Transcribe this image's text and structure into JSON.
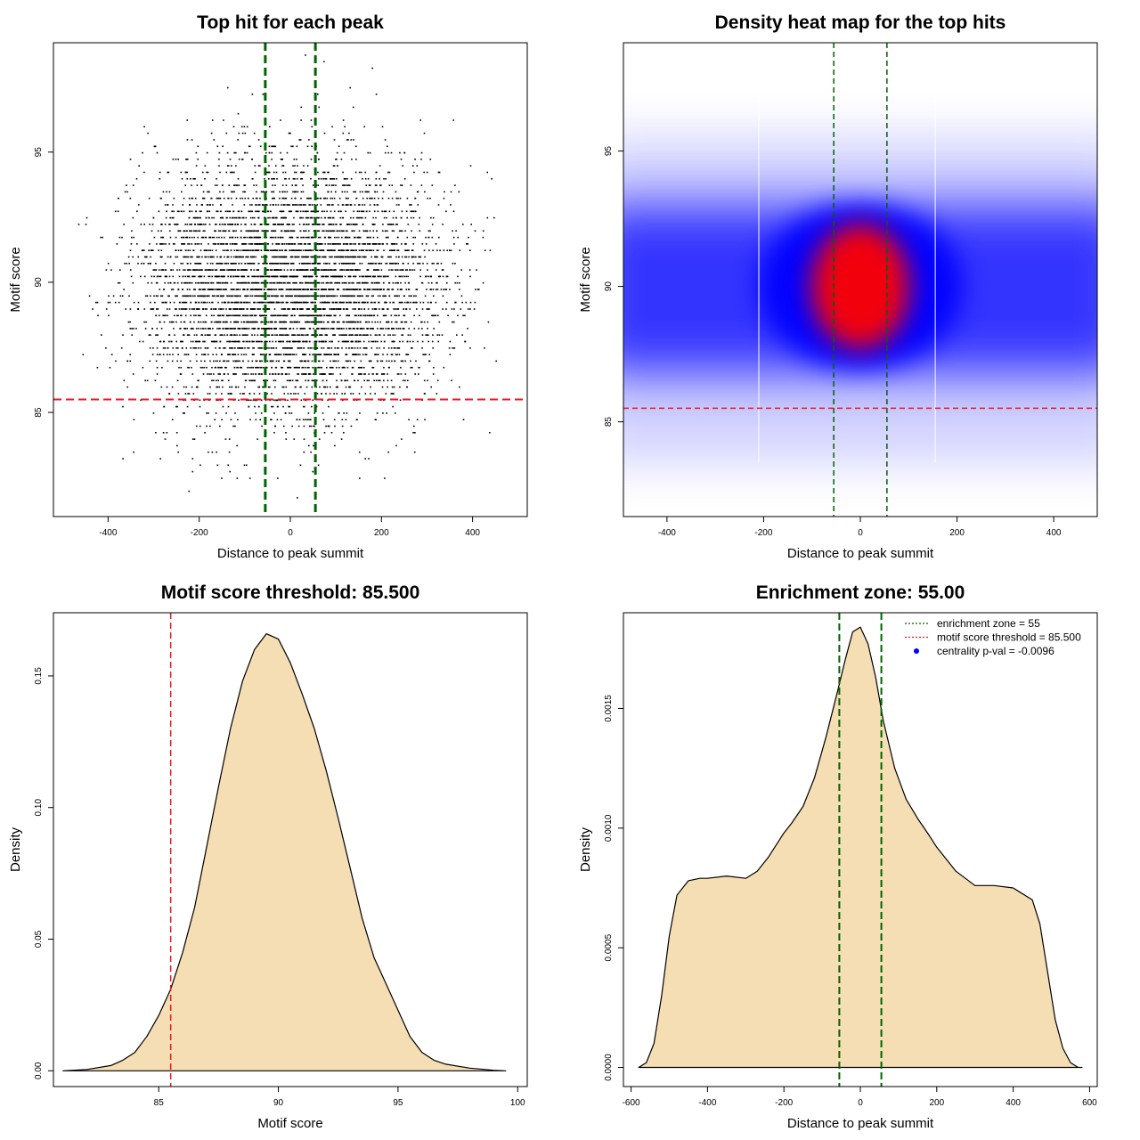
{
  "colors": {
    "fill": "#f5deb3",
    "zone_line": "#006400",
    "threshold_line": "#e41a1c",
    "heat_low": "#0000ff",
    "heat_high": "#ff0000",
    "point": "#000000"
  },
  "chart_data": [
    {
      "id": "scatter",
      "type": "scatter",
      "title": "Top hit for each peak",
      "xlabel": "Distance to peak summit",
      "ylabel": "Motif score",
      "xlim": [
        -520,
        520
      ],
      "ylim": [
        81,
        99.2
      ],
      "xticks": [
        -400,
        -200,
        0,
        200,
        400
      ],
      "yticks": [
        85,
        90,
        95
      ],
      "x_range": [
        -490,
        490
      ],
      "y_mean": 89.8,
      "y_sd": 2.4,
      "n_points_drawn": 6000,
      "vlines": [
        -55,
        55
      ],
      "hline": 85.5,
      "grid": false
    },
    {
      "id": "heatmap",
      "type": "heatmap",
      "title": "Density heat map for the top hits",
      "xlabel": "Distance to peak summit",
      "ylabel": "Motif score",
      "xlim": [
        -490,
        490
      ],
      "ylim": [
        81.5,
        99
      ],
      "xticks": [
        -400,
        -200,
        0,
        200,
        400
      ],
      "yticks": [
        85,
        90,
        95
      ],
      "density_peak": [
        0,
        90
      ],
      "vlines": [
        -55,
        55
      ],
      "hline": 85.5,
      "grid": false
    },
    {
      "id": "score_density",
      "type": "area",
      "title": "Motif score threshold: 85.500",
      "xlabel": "Motif score",
      "ylabel": "Density",
      "xlim": [
        80.6,
        100.4
      ],
      "ylim": [
        -0.006,
        0.174
      ],
      "xticks": [
        85,
        90,
        95,
        100
      ],
      "yticks": [
        0.0,
        0.05,
        0.1,
        0.15
      ],
      "ytick_labels": [
        "0.00",
        "0.05",
        "0.10",
        "0.15"
      ],
      "x": [
        81,
        82,
        83,
        83.5,
        84,
        84.5,
        85,
        85.5,
        86,
        86.5,
        87,
        87.5,
        88,
        88.5,
        89,
        89.5,
        90,
        90.5,
        91,
        91.5,
        92,
        92.5,
        93,
        93.5,
        94,
        94.5,
        95,
        95.5,
        96,
        96.5,
        97,
        98,
        99,
        99.5
      ],
      "y": [
        0,
        0.0005,
        0.002,
        0.004,
        0.007,
        0.013,
        0.021,
        0.031,
        0.045,
        0.062,
        0.085,
        0.108,
        0.13,
        0.148,
        0.16,
        0.166,
        0.164,
        0.155,
        0.143,
        0.13,
        0.114,
        0.096,
        0.077,
        0.058,
        0.043,
        0.033,
        0.023,
        0.013,
        0.007,
        0.004,
        0.0025,
        0.001,
        0.0002,
        0
      ],
      "vline": 85.5,
      "grid": false
    },
    {
      "id": "distance_density",
      "type": "area",
      "title": "Enrichment zone: 55.00",
      "xlabel": "Distance to peak summit",
      "ylabel": "Density",
      "xlim": [
        -620,
        620
      ],
      "ylim": [
        -8e-05,
        0.0019
      ],
      "xticks": [
        -600,
        -400,
        -200,
        0,
        200,
        400,
        600
      ],
      "yticks": [
        0.0,
        0.0005,
        0.001,
        0.0015
      ],
      "ytick_labels": [
        "0.0000",
        "0.0005",
        "0.0010",
        "0.0015"
      ],
      "x": [
        -580,
        -560,
        -540,
        -520,
        -500,
        -480,
        -450,
        -420,
        -400,
        -350,
        -300,
        -270,
        -240,
        -200,
        -180,
        -150,
        -120,
        -90,
        -60,
        -40,
        -20,
        0,
        20,
        40,
        60,
        90,
        120,
        150,
        180,
        200,
        250,
        300,
        350,
        400,
        450,
        470,
        490,
        510,
        530,
        550,
        570,
        580
      ],
      "y": [
        0,
        2e-05,
        0.0001,
        0.0003,
        0.00055,
        0.00072,
        0.00078,
        0.00079,
        0.00079,
        0.0008,
        0.00079,
        0.00082,
        0.00088,
        0.00098,
        0.00102,
        0.00109,
        0.00121,
        0.00138,
        0.00157,
        0.0017,
        0.00182,
        0.00184,
        0.00177,
        0.00163,
        0.00145,
        0.00125,
        0.00112,
        0.00104,
        0.00097,
        0.00092,
        0.00082,
        0.00076,
        0.00076,
        0.00075,
        0.0007,
        0.0006,
        0.0004,
        0.0002,
        8e-05,
        2e-05,
        0,
        0
      ],
      "vlines": [
        -55,
        55
      ],
      "legend_position": "top-right",
      "legend": [
        {
          "label": "enrichment zone = 55",
          "style": "dotted",
          "color": "#006400"
        },
        {
          "label": "motif score threshold = 85.500",
          "style": "dotted",
          "color": "#e41a1c"
        },
        {
          "label": "centrality p-val = -0.0096",
          "style": "point",
          "color": "#0000ff"
        }
      ],
      "grid": false
    }
  ]
}
